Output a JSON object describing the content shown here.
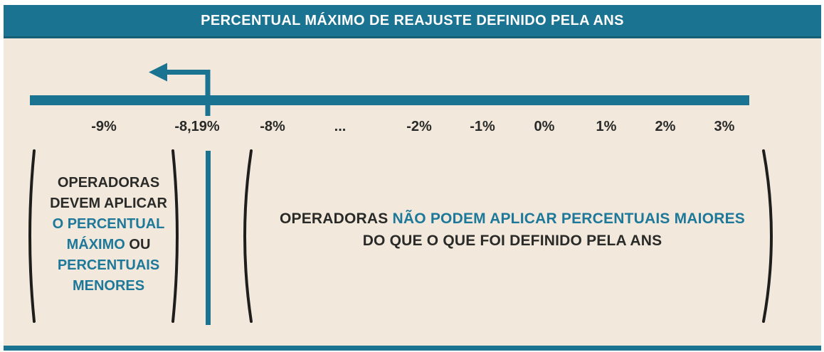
{
  "header": {
    "title": "PERCENTUAL MÁXIMO DE REAJUSTE DEFINIDO PELA ANS"
  },
  "number_line": {
    "ticks": [
      "-9%",
      "-8,19%",
      "-8%",
      "...",
      "-2%",
      "-1%",
      "0%",
      "1%",
      "2%",
      "3%"
    ],
    "highlight_label": "-8,19%",
    "arrow_direction": "left"
  },
  "left_note": {
    "lines": [
      [
        {
          "text": "OPERADORAS",
          "color": "dark"
        }
      ],
      [
        {
          "text": "DEVEM APLICAR",
          "color": "dark"
        }
      ],
      [
        {
          "text": "O PERCENTUAL",
          "color": "teal"
        }
      ],
      [
        {
          "text": "MÁXIMO",
          "color": "teal"
        },
        {
          "text": " OU",
          "color": "dark"
        }
      ],
      [
        {
          "text": "PERCENTUAIS",
          "color": "teal"
        }
      ],
      [
        {
          "text": "MENORES",
          "color": "teal"
        }
      ]
    ]
  },
  "right_note": {
    "lines": [
      [
        {
          "text": "OPERADORAS ",
          "color": "dark"
        },
        {
          "text": "NÃO PODEM APLICAR PERCENTUAIS MAIORES",
          "color": "teal"
        }
      ],
      [
        {
          "text": "DO QUE O QUE FOI DEFINIDO PELA ANS",
          "color": "dark"
        }
      ]
    ]
  },
  "colors": {
    "teal": "#1B7392",
    "teal_text": "#1E7899",
    "cream": "#F2E9DC",
    "dark": "#2A2A28",
    "white": "#FFFFFF"
  }
}
